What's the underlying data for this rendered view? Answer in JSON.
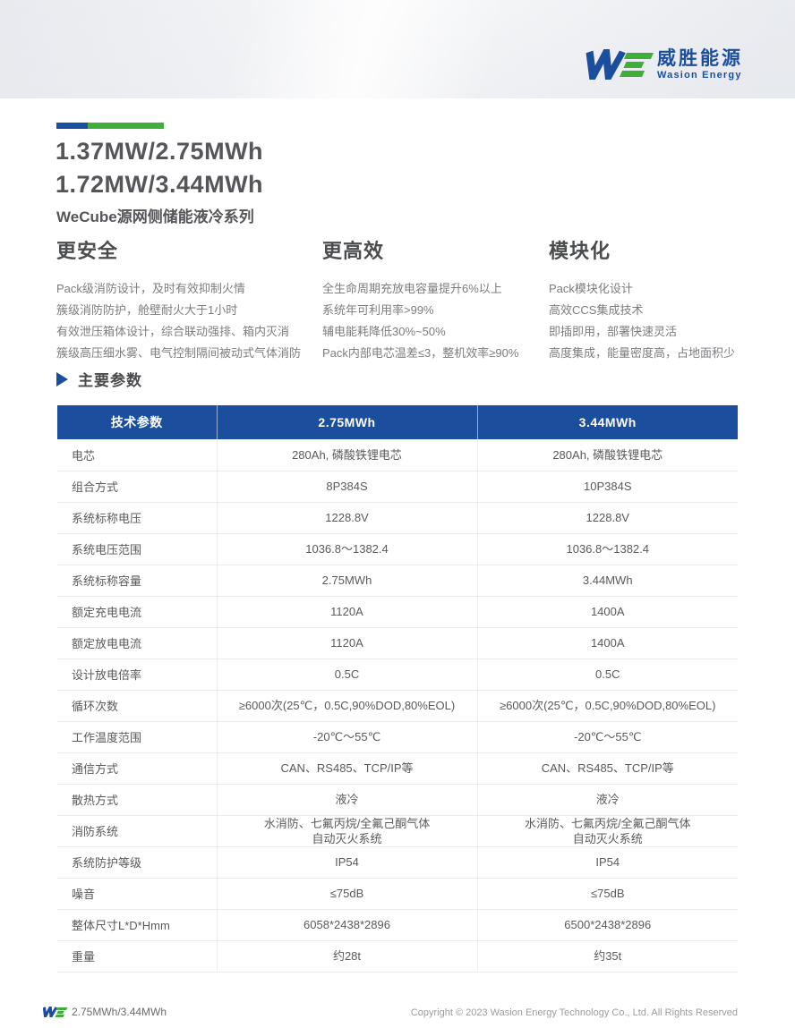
{
  "logo": {
    "brand_cn": "威胜能源",
    "brand_en": "Wasion Energy"
  },
  "title": {
    "line1": "1.37MW/2.75MWh",
    "line2": "1.72MW/3.44MWh",
    "subtitle": "WeCube源网侧储能液冷系列"
  },
  "features": [
    {
      "heading": "更安全",
      "items": [
        "Pack级消防设计，及时有效抑制火情",
        "簇级消防防护，舱壁耐火大于1小时",
        "有效泄压箱体设计，综合联动强排、箱内灭消",
        "簇级高压细水雾、电气控制隔间被动式气体消防"
      ]
    },
    {
      "heading": "更高效",
      "items": [
        "全生命周期充放电容量提升6%以上",
        "系统年可利用率>99%",
        "辅电能耗降低30%~50%",
        "Pack内部电芯温差≤3，整机效率≥90%"
      ]
    },
    {
      "heading": "模块化",
      "items": [
        "Pack模块化设计",
        "高效CCS集成技术",
        "即插即用，部署快速灵活",
        "高度集成，能量密度高，占地面积少"
      ]
    }
  ],
  "section": {
    "title": "主要参数"
  },
  "table": {
    "headers": [
      "技术参数",
      "2.75MWh",
      "3.44MWh"
    ],
    "rows": [
      [
        "电芯",
        "280Ah, 磷酸铁锂电芯",
        "280Ah, 磷酸铁锂电芯"
      ],
      [
        "组合方式",
        "8P384S",
        "10P384S"
      ],
      [
        "系统标称电压",
        "1228.8V",
        "1228.8V"
      ],
      [
        "系统电压范围",
        "1036.8～1382.4",
        "1036.8～1382.4"
      ],
      [
        "系统标称容量",
        "2.75MWh",
        "3.44MWh"
      ],
      [
        "额定充电电流",
        "1120A",
        "1400A"
      ],
      [
        "额定放电电流",
        "1120A",
        "1400A"
      ],
      [
        "设计放电倍率",
        "0.5C",
        "0.5C"
      ],
      [
        "循环次数",
        "≥6000次(25℃，0.5C,90%DOD,80%EOL)",
        "≥6000次(25℃，0.5C,90%DOD,80%EOL)"
      ],
      [
        "工作温度范围",
        "-20℃～55℃",
        "-20℃～55℃"
      ],
      [
        "通信方式",
        "CAN、RS485、TCP/IP等",
        "CAN、RS485、TCP/IP等"
      ],
      [
        "散热方式",
        "液冷",
        "液冷"
      ],
      [
        "消防系统",
        "水消防、七氟丙烷/全氟己酮气体\n自动灭火系统",
        "水消防、七氟丙烷/全氟己酮气体\n自动灭火系统"
      ],
      [
        "系统防护等级",
        "IP54",
        "IP54"
      ],
      [
        "噪音",
        "≤75dB",
        "≤75dB"
      ],
      [
        "整体尺寸L*D*Hmm",
        "6058*2438*2896",
        "6500*2438*2896"
      ],
      [
        "重量",
        "约28t",
        "约35t"
      ]
    ]
  },
  "footer": {
    "left_label": "2.75MWh/3.44MWh",
    "copyright": "Copyright © 2023 Wasion Energy Technology Co., Ltd. All Rights Reserved"
  },
  "colors": {
    "brand_blue": "#1b4f9e",
    "brand_green": "#3fae3a"
  }
}
